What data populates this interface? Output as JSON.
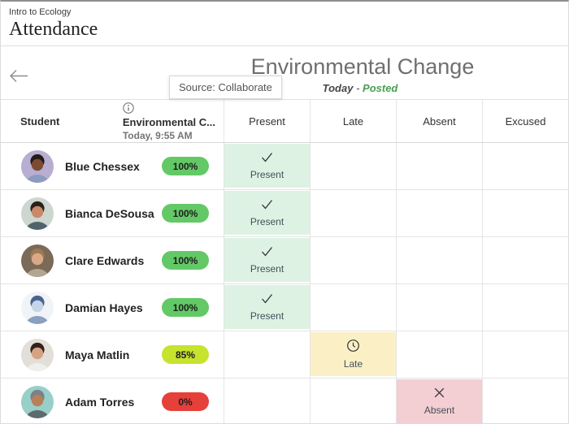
{
  "header": {
    "course": "Intro to Ecology",
    "title": "Attendance"
  },
  "meeting_bar": {
    "title": "Environmental Change",
    "date": "Today",
    "separator": "-",
    "status": "Posted"
  },
  "tooltip": {
    "text": "Source: Collaborate"
  },
  "table": {
    "columns": {
      "student": "Student",
      "meeting": {
        "title": "Environmental C...",
        "subtitle": "Today, 9:55 AM"
      },
      "statuses": [
        "Present",
        "Late",
        "Absent",
        "Excused"
      ]
    }
  },
  "status_styles": {
    "present": {
      "bg": "#ddf2e3",
      "label": "Present",
      "icon": "check-icon"
    },
    "late": {
      "bg": "#fbf0c5",
      "label": "Late",
      "icon": "clock-icon"
    },
    "absent": {
      "bg": "#f3ced2",
      "label": "Absent",
      "icon": "x-icon"
    }
  },
  "colors": {
    "score_green": "#63c966",
    "score_lime": "#c7e32d",
    "score_red": "#e6403a",
    "posted_green": "#4a9e53"
  },
  "students": [
    {
      "name": "Blue Chessex",
      "overall": "100%",
      "overall_color": "#63c966",
      "status": "present",
      "avatar": {
        "bg": "#b7aed2",
        "skin": "#7c4b33",
        "hair": "#241b16",
        "shirt": "#8c9bbf"
      }
    },
    {
      "name": "Bianca DeSousa",
      "overall": "100%",
      "overall_color": "#63c966",
      "status": "present",
      "avatar": {
        "bg": "#cdd6cf",
        "skin": "#c8896a",
        "hair": "#2a201c",
        "shirt": "#51636a"
      }
    },
    {
      "name": "Clare Edwards",
      "overall": "100%",
      "overall_color": "#63c966",
      "status": "present",
      "avatar": {
        "bg": "#7a6a57",
        "skin": "#d9a988",
        "hair": "#9c7b52",
        "shirt": "#b4a593"
      }
    },
    {
      "name": "Damian Hayes",
      "overall": "100%",
      "overall_color": "#63c966",
      "status": "present",
      "avatar": {
        "bg": "#f0f3f8",
        "skin": "#c7d4e8",
        "hair": "#49648c",
        "shirt": "#8aa0c0"
      }
    },
    {
      "name": "Maya Matlin",
      "overall": "85%",
      "overall_color": "#c7e32d",
      "status": "late",
      "avatar": {
        "bg": "#e2ded8",
        "skin": "#d6a284",
        "hair": "#31221b",
        "shirt": "#efefec"
      }
    },
    {
      "name": "Adam Torres",
      "overall": "0%",
      "overall_color": "#e6403a",
      "status": "absent",
      "avatar": {
        "bg": "#98cfc9",
        "skin": "#b5805a",
        "hair": "#7b8187",
        "shirt": "#5d6a6e"
      }
    }
  ]
}
